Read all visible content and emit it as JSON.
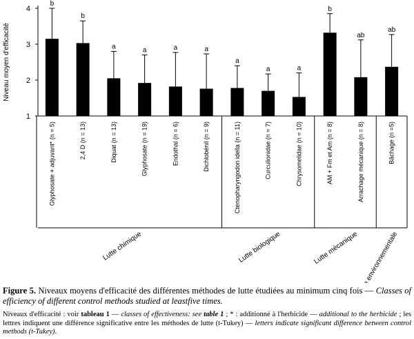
{
  "chart_data": {
    "type": "bar",
    "y_label": "Niveau moyen d'efficacité",
    "categories": [
      "Glyphosate + adjuvant* (n = 5)",
      "2,4 D (n = 13)",
      "Diquat (n = 13)",
      "Glyphosate (n = 19)",
      "Endothal (n = 6)",
      "Dichlobénil (n = 9)",
      "Ctenopharyngodon idella (n = 11)",
      "Curculionidae (n = 7)",
      "Chrysomelidae (n = 10)",
      "AM + Fm et Am (n = 8)",
      "Arrachage mécanique (n = 8)",
      "Bâchage (n =5)"
    ],
    "values": [
      3.15,
      3.03,
      2.05,
      1.92,
      1.82,
      1.76,
      1.78,
      1.7,
      1.53,
      3.32,
      2.08,
      2.37
    ],
    "errors": [
      0.85,
      0.62,
      0.75,
      0.78,
      0.95,
      0.97,
      0.62,
      0.47,
      0.67,
      0.53,
      1.04,
      0.9
    ],
    "letters": [
      "b",
      "b",
      "a",
      "a",
      "a",
      "a",
      "a",
      "a",
      "a",
      "b",
      "ab",
      "ab"
    ],
    "groups": [
      "Lutte chimique",
      "Lutte biologique",
      "Lutte mécanique",
      "Lutte environnementale"
    ],
    "color": "#000000",
    "ylim": [
      1,
      4
    ],
    "yticks": [
      1,
      2,
      3,
      4
    ]
  },
  "caption": {
    "label": "Figure 5.",
    "text": "Niveaux moyens d'efficacité des différentes méthodes de lutte étudiées au minimum cinq fois —",
    "translation": "Classes of efficiency of different control methods studied at leastfive times."
  },
  "note": [
    {
      "text": "Niveaux d'efficacité : voir ",
      "style": "normal"
    },
    {
      "text": "tableau 1",
      "style": "bold"
    },
    {
      "text": " — ",
      "style": "normal"
    },
    {
      "text": "classes of effectiveness: see ",
      "style": "italic"
    },
    {
      "text": "table 1",
      "style": "bold-italic"
    },
    {
      "text": " ; * : additionné à l'herbicide — ",
      "style": "normal"
    },
    {
      "text": "additional to the herbicide",
      "style": "italic"
    },
    {
      "text": " ; les lettres indiquent une différence significative entre les méthodes de lutte (t-Tukey) — ",
      "style": "normal"
    },
    {
      "text": "letters indicate significant difference between control methods (t-Tukey)",
      "style": "italic"
    },
    {
      "text": ".",
      "style": "normal"
    }
  ]
}
